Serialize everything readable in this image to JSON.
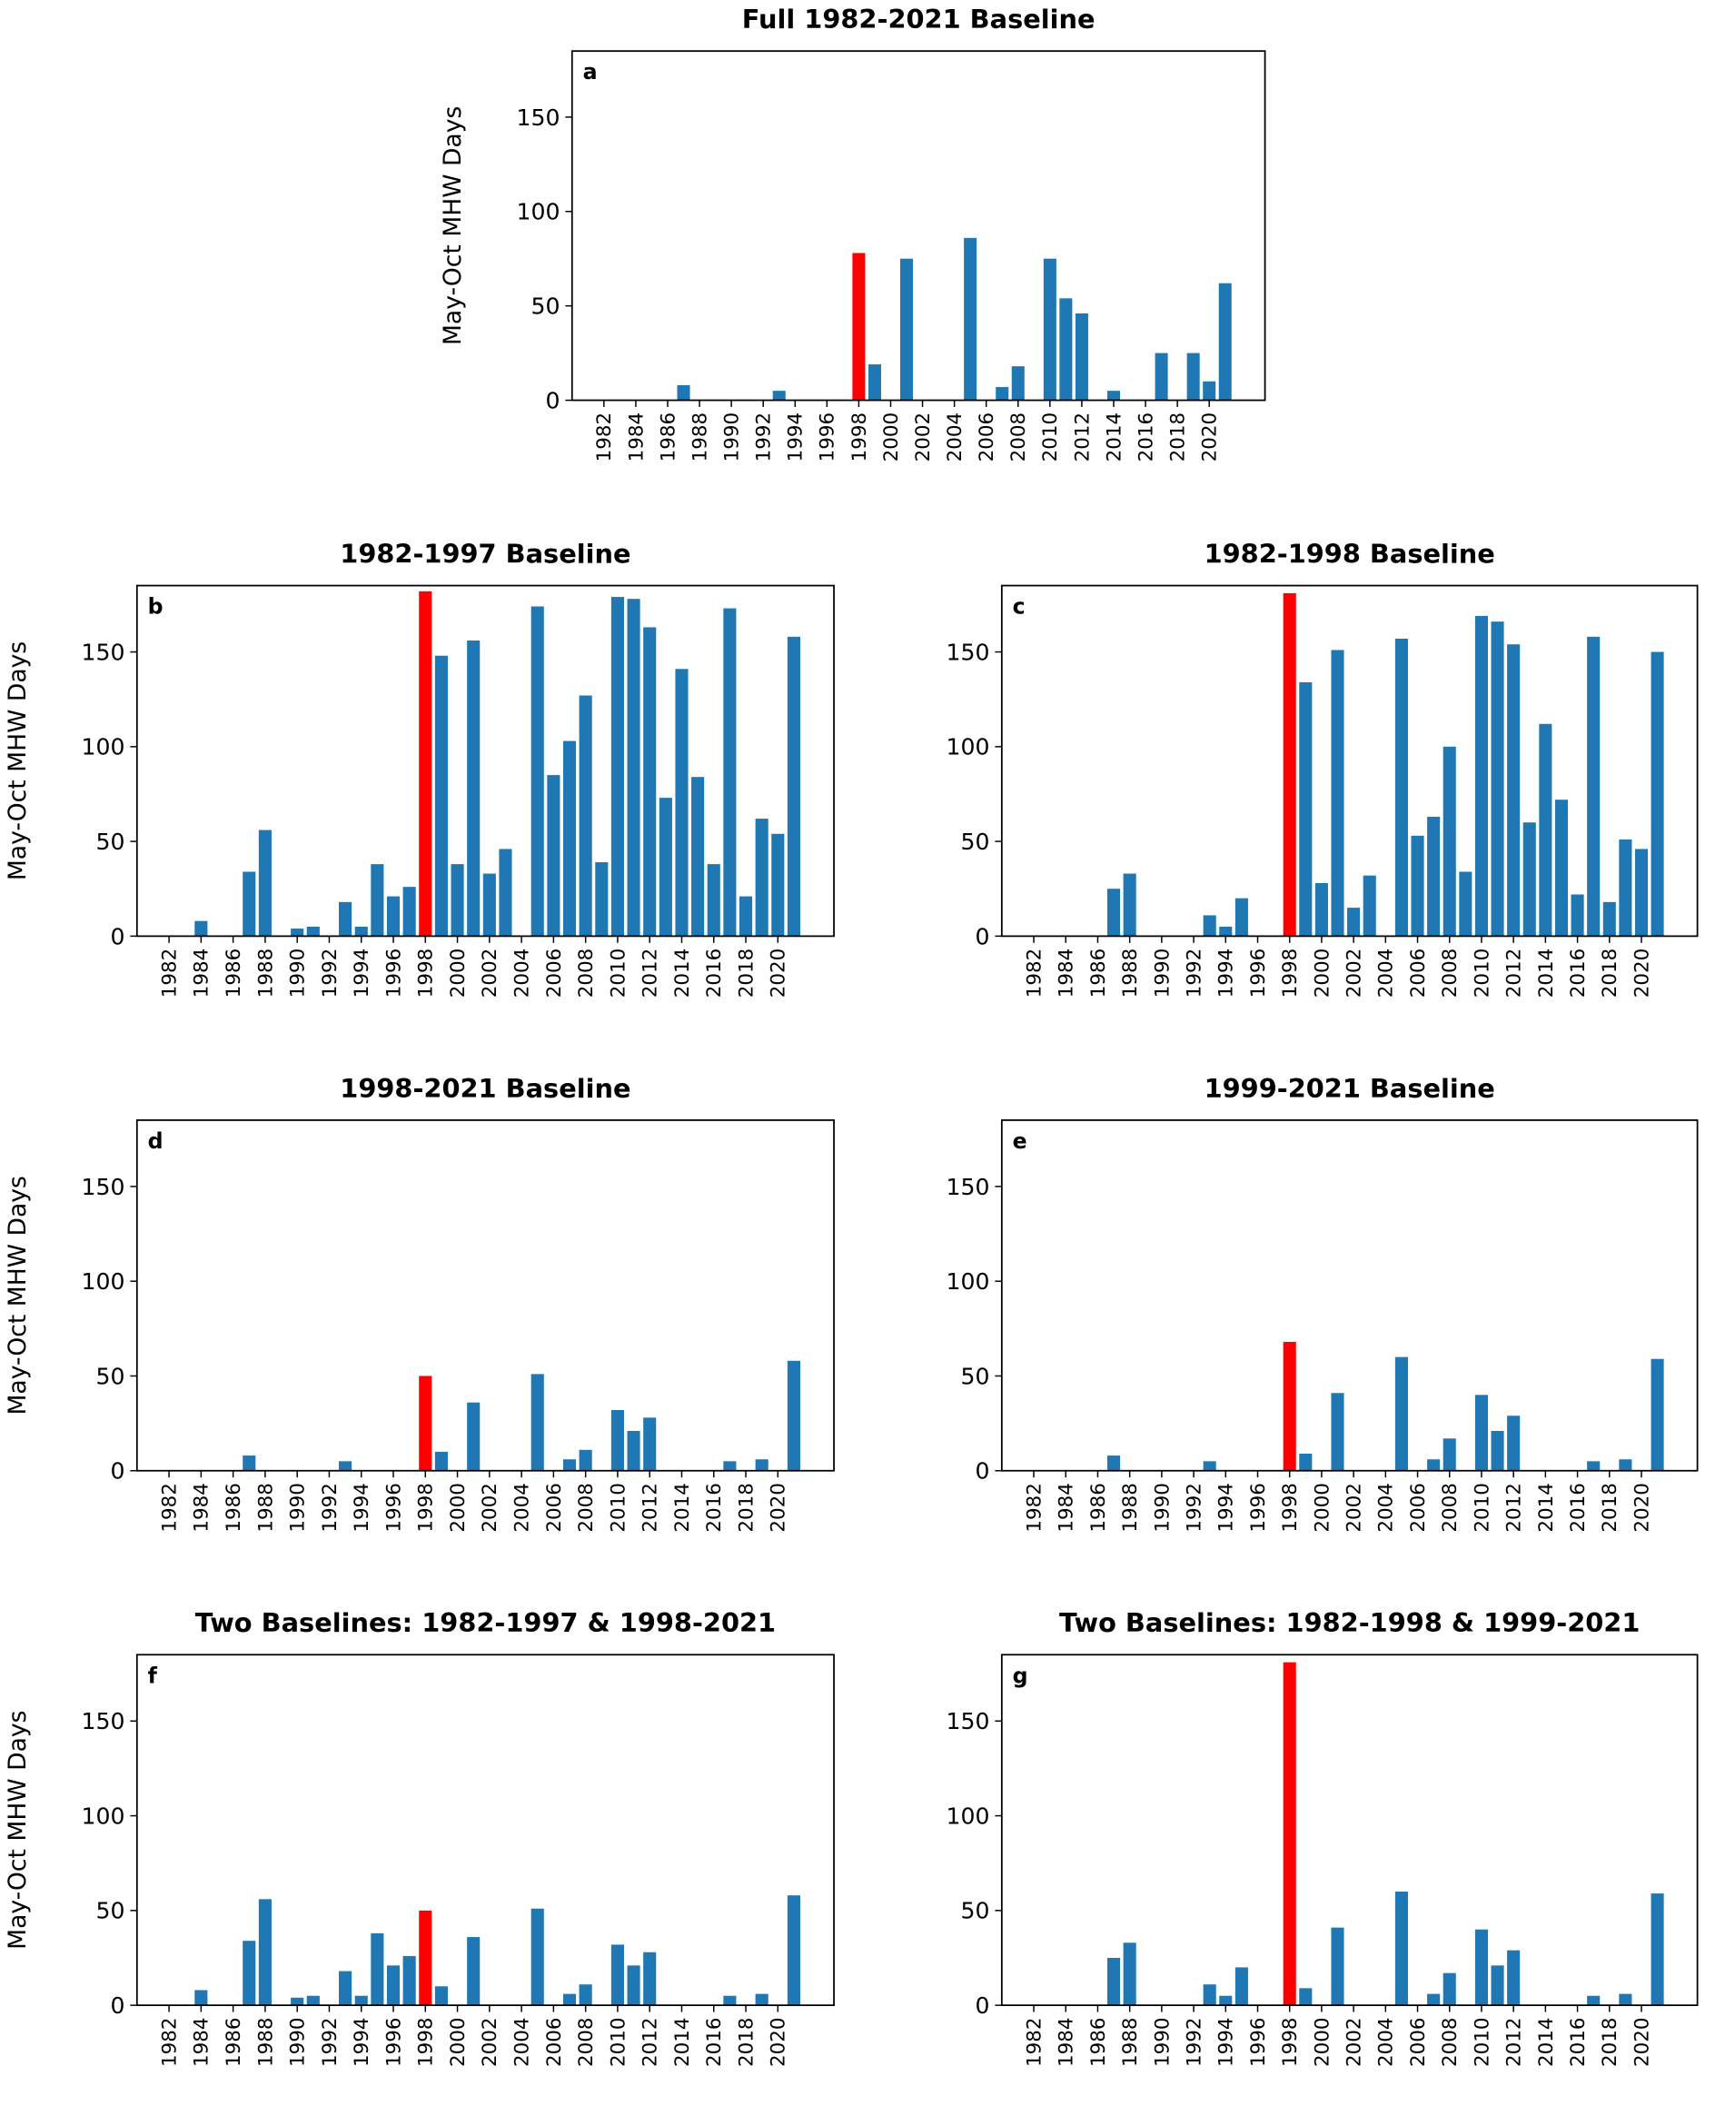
{
  "chart_data": [
    {
      "type": "bar",
      "title": "Full 1982-2021 Baseline",
      "panel_label": "a",
      "ylabel": "May-Oct MHW Days",
      "x": [
        1982,
        1983,
        1984,
        1985,
        1986,
        1987,
        1988,
        1989,
        1990,
        1991,
        1992,
        1993,
        1994,
        1995,
        1996,
        1997,
        1998,
        1999,
        2000,
        2001,
        2002,
        2003,
        2004,
        2005,
        2006,
        2007,
        2008,
        2009,
        2010,
        2011,
        2012,
        2013,
        2014,
        2015,
        2016,
        2017,
        2018,
        2019,
        2020,
        2021
      ],
      "values": [
        0,
        0,
        0,
        0,
        0,
        8,
        0,
        0,
        0,
        0,
        0,
        5,
        0,
        0,
        0,
        0,
        78,
        19,
        0,
        75,
        0,
        0,
        0,
        86,
        0,
        7,
        18,
        0,
        75,
        54,
        46,
        0,
        5,
        0,
        0,
        25,
        0,
        25,
        10,
        62
      ],
      "colors": [
        "#1f77b4",
        "#1f77b4",
        "#1f77b4",
        "#1f77b4",
        "#1f77b4",
        "#1f77b4",
        "#1f77b4",
        "#1f77b4",
        "#1f77b4",
        "#1f77b4",
        "#1f77b4",
        "#1f77b4",
        "#1f77b4",
        "#1f77b4",
        "#1f77b4",
        "#1f77b4",
        "#ff0000",
        "#1f77b4",
        "#1f77b4",
        "#1f77b4",
        "#1f77b4",
        "#1f77b4",
        "#1f77b4",
        "#1f77b4",
        "#1f77b4",
        "#1f77b4",
        "#1f77b4",
        "#1f77b4",
        "#1f77b4",
        "#1f77b4",
        "#1f77b4",
        "#1f77b4",
        "#1f77b4",
        "#1f77b4",
        "#1f77b4",
        "#1f77b4",
        "#1f77b4",
        "#1f77b4",
        "#1f77b4",
        "#1f77b4"
      ],
      "xlim": [
        1980,
        2023.5
      ],
      "xticks": [
        1982,
        1984,
        1986,
        1988,
        1990,
        1992,
        1994,
        1996,
        1998,
        2000,
        2002,
        2004,
        2006,
        2008,
        2010,
        2012,
        2014,
        2016,
        2018,
        2020
      ],
      "ylim": [
        0,
        185
      ],
      "yticks": [
        0,
        50,
        100,
        150
      ]
    },
    {
      "type": "bar",
      "title": "1982-1997 Baseline",
      "panel_label": "b",
      "ylabel": "May-Oct MHW Days",
      "x": [
        1982,
        1983,
        1984,
        1985,
        1986,
        1987,
        1988,
        1989,
        1990,
        1991,
        1992,
        1993,
        1994,
        1995,
        1996,
        1997,
        1998,
        1999,
        2000,
        2001,
        2002,
        2003,
        2004,
        2005,
        2006,
        2007,
        2008,
        2009,
        2010,
        2011,
        2012,
        2013,
        2014,
        2015,
        2016,
        2017,
        2018,
        2019,
        2020,
        2021
      ],
      "values": [
        0,
        0,
        8,
        0,
        0,
        34,
        56,
        0,
        4,
        5,
        0,
        18,
        5,
        38,
        21,
        26,
        182,
        148,
        38,
        156,
        33,
        46,
        0,
        174,
        85,
        103,
        127,
        39,
        179,
        178,
        163,
        73,
        141,
        84,
        38,
        173,
        21,
        62,
        54,
        158
      ],
      "colors": [
        "#1f77b4",
        "#1f77b4",
        "#1f77b4",
        "#1f77b4",
        "#1f77b4",
        "#1f77b4",
        "#1f77b4",
        "#1f77b4",
        "#1f77b4",
        "#1f77b4",
        "#1f77b4",
        "#1f77b4",
        "#1f77b4",
        "#1f77b4",
        "#1f77b4",
        "#1f77b4",
        "#ff0000",
        "#1f77b4",
        "#1f77b4",
        "#1f77b4",
        "#1f77b4",
        "#1f77b4",
        "#1f77b4",
        "#1f77b4",
        "#1f77b4",
        "#1f77b4",
        "#1f77b4",
        "#1f77b4",
        "#1f77b4",
        "#1f77b4",
        "#1f77b4",
        "#1f77b4",
        "#1f77b4",
        "#1f77b4",
        "#1f77b4",
        "#1f77b4",
        "#1f77b4",
        "#1f77b4",
        "#1f77b4",
        "#1f77b4"
      ],
      "xlim": [
        1980,
        2023.5
      ],
      "xticks": [
        1982,
        1984,
        1986,
        1988,
        1990,
        1992,
        1994,
        1996,
        1998,
        2000,
        2002,
        2004,
        2006,
        2008,
        2010,
        2012,
        2014,
        2016,
        2018,
        2020
      ],
      "ylim": [
        0,
        185
      ],
      "yticks": [
        0,
        50,
        100,
        150
      ]
    },
    {
      "type": "bar",
      "title": "1982-1998 Baseline",
      "panel_label": "c",
      "x": [
        1982,
        1983,
        1984,
        1985,
        1986,
        1987,
        1988,
        1989,
        1990,
        1991,
        1992,
        1993,
        1994,
        1995,
        1996,
        1997,
        1998,
        1999,
        2000,
        2001,
        2002,
        2003,
        2004,
        2005,
        2006,
        2007,
        2008,
        2009,
        2010,
        2011,
        2012,
        2013,
        2014,
        2015,
        2016,
        2017,
        2018,
        2019,
        2020,
        2021
      ],
      "values": [
        0,
        0,
        0,
        0,
        0,
        25,
        33,
        0,
        0,
        0,
        0,
        11,
        5,
        20,
        0,
        0,
        181,
        134,
        28,
        151,
        15,
        32,
        0,
        157,
        53,
        63,
        100,
        34,
        169,
        166,
        154,
        60,
        112,
        72,
        22,
        158,
        18,
        51,
        46,
        150
      ],
      "colors": [
        "#1f77b4",
        "#1f77b4",
        "#1f77b4",
        "#1f77b4",
        "#1f77b4",
        "#1f77b4",
        "#1f77b4",
        "#1f77b4",
        "#1f77b4",
        "#1f77b4",
        "#1f77b4",
        "#1f77b4",
        "#1f77b4",
        "#1f77b4",
        "#1f77b4",
        "#1f77b4",
        "#ff0000",
        "#1f77b4",
        "#1f77b4",
        "#1f77b4",
        "#1f77b4",
        "#1f77b4",
        "#1f77b4",
        "#1f77b4",
        "#1f77b4",
        "#1f77b4",
        "#1f77b4",
        "#1f77b4",
        "#1f77b4",
        "#1f77b4",
        "#1f77b4",
        "#1f77b4",
        "#1f77b4",
        "#1f77b4",
        "#1f77b4",
        "#1f77b4",
        "#1f77b4",
        "#1f77b4",
        "#1f77b4",
        "#1f77b4"
      ],
      "xlim": [
        1980,
        2023.5
      ],
      "xticks": [
        1982,
        1984,
        1986,
        1988,
        1990,
        1992,
        1994,
        1996,
        1998,
        2000,
        2002,
        2004,
        2006,
        2008,
        2010,
        2012,
        2014,
        2016,
        2018,
        2020
      ],
      "ylim": [
        0,
        185
      ],
      "yticks": [
        0,
        50,
        100,
        150
      ]
    },
    {
      "type": "bar",
      "title": "1998-2021 Baseline",
      "panel_label": "d",
      "ylabel": "May-Oct MHW Days",
      "x": [
        1982,
        1983,
        1984,
        1985,
        1986,
        1987,
        1988,
        1989,
        1990,
        1991,
        1992,
        1993,
        1994,
        1995,
        1996,
        1997,
        1998,
        1999,
        2000,
        2001,
        2002,
        2003,
        2004,
        2005,
        2006,
        2007,
        2008,
        2009,
        2010,
        2011,
        2012,
        2013,
        2014,
        2015,
        2016,
        2017,
        2018,
        2019,
        2020,
        2021
      ],
      "values": [
        0,
        0,
        0,
        0,
        0,
        8,
        0,
        0,
        0,
        0,
        0,
        5,
        0,
        0,
        0,
        0,
        50,
        10,
        0,
        36,
        0,
        0,
        0,
        51,
        0,
        6,
        11,
        0,
        32,
        21,
        28,
        0,
        0,
        0,
        0,
        5,
        0,
        6,
        0,
        58
      ],
      "colors": [
        "#1f77b4",
        "#1f77b4",
        "#1f77b4",
        "#1f77b4",
        "#1f77b4",
        "#1f77b4",
        "#1f77b4",
        "#1f77b4",
        "#1f77b4",
        "#1f77b4",
        "#1f77b4",
        "#1f77b4",
        "#1f77b4",
        "#1f77b4",
        "#1f77b4",
        "#1f77b4",
        "#ff0000",
        "#1f77b4",
        "#1f77b4",
        "#1f77b4",
        "#1f77b4",
        "#1f77b4",
        "#1f77b4",
        "#1f77b4",
        "#1f77b4",
        "#1f77b4",
        "#1f77b4",
        "#1f77b4",
        "#1f77b4",
        "#1f77b4",
        "#1f77b4",
        "#1f77b4",
        "#1f77b4",
        "#1f77b4",
        "#1f77b4",
        "#1f77b4",
        "#1f77b4",
        "#1f77b4",
        "#1f77b4",
        "#1f77b4"
      ],
      "xlim": [
        1980,
        2023.5
      ],
      "xticks": [
        1982,
        1984,
        1986,
        1988,
        1990,
        1992,
        1994,
        1996,
        1998,
        2000,
        2002,
        2004,
        2006,
        2008,
        2010,
        2012,
        2014,
        2016,
        2018,
        2020
      ],
      "ylim": [
        0,
        185
      ],
      "yticks": [
        0,
        50,
        100,
        150
      ]
    },
    {
      "type": "bar",
      "title": "1999-2021 Baseline",
      "panel_label": "e",
      "x": [
        1982,
        1983,
        1984,
        1985,
        1986,
        1987,
        1988,
        1989,
        1990,
        1991,
        1992,
        1993,
        1994,
        1995,
        1996,
        1997,
        1998,
        1999,
        2000,
        2001,
        2002,
        2003,
        2004,
        2005,
        2006,
        2007,
        2008,
        2009,
        2010,
        2011,
        2012,
        2013,
        2014,
        2015,
        2016,
        2017,
        2018,
        2019,
        2020,
        2021
      ],
      "values": [
        0,
        0,
        0,
        0,
        0,
        8,
        0,
        0,
        0,
        0,
        0,
        5,
        0,
        0,
        0,
        0,
        68,
        9,
        0,
        41,
        0,
        0,
        0,
        60,
        0,
        6,
        17,
        0,
        40,
        21,
        29,
        0,
        0,
        0,
        0,
        5,
        0,
        6,
        0,
        59
      ],
      "colors": [
        "#1f77b4",
        "#1f77b4",
        "#1f77b4",
        "#1f77b4",
        "#1f77b4",
        "#1f77b4",
        "#1f77b4",
        "#1f77b4",
        "#1f77b4",
        "#1f77b4",
        "#1f77b4",
        "#1f77b4",
        "#1f77b4",
        "#1f77b4",
        "#1f77b4",
        "#1f77b4",
        "#ff0000",
        "#1f77b4",
        "#1f77b4",
        "#1f77b4",
        "#1f77b4",
        "#1f77b4",
        "#1f77b4",
        "#1f77b4",
        "#1f77b4",
        "#1f77b4",
        "#1f77b4",
        "#1f77b4",
        "#1f77b4",
        "#1f77b4",
        "#1f77b4",
        "#1f77b4",
        "#1f77b4",
        "#1f77b4",
        "#1f77b4",
        "#1f77b4",
        "#1f77b4",
        "#1f77b4",
        "#1f77b4",
        "#1f77b4"
      ],
      "xlim": [
        1980,
        2023.5
      ],
      "xticks": [
        1982,
        1984,
        1986,
        1988,
        1990,
        1992,
        1994,
        1996,
        1998,
        2000,
        2002,
        2004,
        2006,
        2008,
        2010,
        2012,
        2014,
        2016,
        2018,
        2020
      ],
      "ylim": [
        0,
        185
      ],
      "yticks": [
        0,
        50,
        100,
        150
      ]
    },
    {
      "type": "bar",
      "title": "Two Baselines: 1982-1997 & 1998-2021",
      "panel_label": "f",
      "ylabel": "May-Oct MHW Days",
      "x": [
        1982,
        1983,
        1984,
        1985,
        1986,
        1987,
        1988,
        1989,
        1990,
        1991,
        1992,
        1993,
        1994,
        1995,
        1996,
        1997,
        1998,
        1999,
        2000,
        2001,
        2002,
        2003,
        2004,
        2005,
        2006,
        2007,
        2008,
        2009,
        2010,
        2011,
        2012,
        2013,
        2014,
        2015,
        2016,
        2017,
        2018,
        2019,
        2020,
        2021
      ],
      "values": [
        0,
        0,
        8,
        0,
        0,
        34,
        56,
        0,
        4,
        5,
        0,
        18,
        5,
        38,
        21,
        26,
        50,
        10,
        0,
        36,
        0,
        0,
        0,
        51,
        0,
        6,
        11,
        0,
        32,
        21,
        28,
        0,
        0,
        0,
        0,
        5,
        0,
        6,
        0,
        58
      ],
      "colors": [
        "#1f77b4",
        "#1f77b4",
        "#1f77b4",
        "#1f77b4",
        "#1f77b4",
        "#1f77b4",
        "#1f77b4",
        "#1f77b4",
        "#1f77b4",
        "#1f77b4",
        "#1f77b4",
        "#1f77b4",
        "#1f77b4",
        "#1f77b4",
        "#1f77b4",
        "#1f77b4",
        "#ff0000",
        "#1f77b4",
        "#1f77b4",
        "#1f77b4",
        "#1f77b4",
        "#1f77b4",
        "#1f77b4",
        "#1f77b4",
        "#1f77b4",
        "#1f77b4",
        "#1f77b4",
        "#1f77b4",
        "#1f77b4",
        "#1f77b4",
        "#1f77b4",
        "#1f77b4",
        "#1f77b4",
        "#1f77b4",
        "#1f77b4",
        "#1f77b4",
        "#1f77b4",
        "#1f77b4",
        "#1f77b4",
        "#1f77b4"
      ],
      "xlim": [
        1980,
        2023.5
      ],
      "xticks": [
        1982,
        1984,
        1986,
        1988,
        1990,
        1992,
        1994,
        1996,
        1998,
        2000,
        2002,
        2004,
        2006,
        2008,
        2010,
        2012,
        2014,
        2016,
        2018,
        2020
      ],
      "ylim": [
        0,
        185
      ],
      "yticks": [
        0,
        50,
        100,
        150
      ]
    },
    {
      "type": "bar",
      "title": "Two Baselines: 1982-1998 & 1999-2021",
      "panel_label": "g",
      "x": [
        1982,
        1983,
        1984,
        1985,
        1986,
        1987,
        1988,
        1989,
        1990,
        1991,
        1992,
        1993,
        1994,
        1995,
        1996,
        1997,
        1998,
        1999,
        2000,
        2001,
        2002,
        2003,
        2004,
        2005,
        2006,
        2007,
        2008,
        2009,
        2010,
        2011,
        2012,
        2013,
        2014,
        2015,
        2016,
        2017,
        2018,
        2019,
        2020,
        2021
      ],
      "values": [
        0,
        0,
        0,
        0,
        0,
        25,
        33,
        0,
        0,
        0,
        0,
        11,
        5,
        20,
        0,
        0,
        181,
        9,
        0,
        41,
        0,
        0,
        0,
        60,
        0,
        6,
        17,
        0,
        40,
        21,
        29,
        0,
        0,
        0,
        0,
        5,
        0,
        6,
        0,
        59
      ],
      "colors": [
        "#1f77b4",
        "#1f77b4",
        "#1f77b4",
        "#1f77b4",
        "#1f77b4",
        "#1f77b4",
        "#1f77b4",
        "#1f77b4",
        "#1f77b4",
        "#1f77b4",
        "#1f77b4",
        "#1f77b4",
        "#1f77b4",
        "#1f77b4",
        "#1f77b4",
        "#1f77b4",
        "#ff0000",
        "#1f77b4",
        "#1f77b4",
        "#1f77b4",
        "#1f77b4",
        "#1f77b4",
        "#1f77b4",
        "#1f77b4",
        "#1f77b4",
        "#1f77b4",
        "#1f77b4",
        "#1f77b4",
        "#1f77b4",
        "#1f77b4",
        "#1f77b4",
        "#1f77b4",
        "#1f77b4",
        "#1f77b4",
        "#1f77b4",
        "#1f77b4",
        "#1f77b4",
        "#1f77b4",
        "#1f77b4",
        "#1f77b4"
      ],
      "xlim": [
        1980,
        2023.5
      ],
      "xticks": [
        1982,
        1984,
        1986,
        1988,
        1990,
        1992,
        1994,
        1996,
        1998,
        2000,
        2002,
        2004,
        2006,
        2008,
        2010,
        2012,
        2014,
        2016,
        2018,
        2020
      ],
      "ylim": [
        0,
        185
      ],
      "yticks": [
        0,
        50,
        100,
        150
      ]
    }
  ]
}
